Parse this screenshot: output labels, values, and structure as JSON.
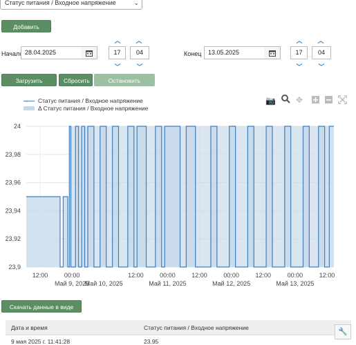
{
  "channel_select": {
    "value": "Статус питания / Входное напряжение"
  },
  "buttons": {
    "add_channel": "Добавить канал",
    "load_data": "Загрузить данные",
    "reset": "Сбросить",
    "stop_loading": "Остановить загрузку",
    "download_csv": "Скачать данные в виде CSV"
  },
  "start": {
    "label": "Начало",
    "date": "28.04.2025",
    "hour": "17",
    "minute": "04"
  },
  "end": {
    "label": "Конец",
    "date": "13.05.2025",
    "hour": "17",
    "minute": "04"
  },
  "legend": {
    "line": "Статус питания / Входное напряжение",
    "area": "Δ Статус питания / Входное напряжение"
  },
  "chart_data": {
    "type": "line",
    "series": [
      {
        "name": "Статус питания / Входное напряжение",
        "style": "line",
        "color": "#3e7dbf"
      },
      {
        "name": "Δ Статус питания / Входное напряжение",
        "style": "area",
        "color": "#c4d8ea"
      }
    ],
    "y_ticks": [
      "24",
      "23,98",
      "23,96",
      "23,94",
      "23,92",
      "23,9"
    ],
    "y_values": [
      24,
      23.98,
      23.96,
      23.94,
      23.92,
      23.9
    ],
    "ylim": [
      23.9,
      24
    ],
    "x_tick_labels": [
      {
        "top": "12:00",
        "bottom": ""
      },
      {
        "top": "00:00",
        "bottom": "Май 9, 2025"
      },
      {
        "top": "",
        "bottom": "Май 10, 2025"
      },
      {
        "top": "12:00",
        "bottom": ""
      },
      {
        "top": "00:00",
        "bottom": "Май 11, 2025"
      },
      {
        "top": "12:00",
        "bottom": ""
      },
      {
        "top": "00:00",
        "bottom": "Май 12, 2025"
      },
      {
        "top": "12:00",
        "bottom": ""
      },
      {
        "top": "00:00",
        "bottom": "Май 13, 2025"
      },
      {
        "top": "12:00",
        "bottom": ""
      }
    ],
    "segments": [
      {
        "from": 0.0,
        "value": 23.95
      },
      {
        "from": 0.11,
        "value": 23.9
      },
      {
        "from": 0.12,
        "value": 23.95
      },
      {
        "from": 0.135,
        "value": 23.9
      },
      {
        "from": 0.14,
        "value": 24
      },
      {
        "from": 0.145,
        "value": 23.9
      },
      {
        "from": 0.16,
        "value": 24
      },
      {
        "from": 0.17,
        "value": 23.9
      },
      {
        "from": 0.18,
        "value": 24
      },
      {
        "from": 0.19,
        "value": 23.9
      },
      {
        "from": 0.2,
        "value": 24
      },
      {
        "from": 0.22,
        "value": 23.9
      },
      {
        "from": 0.24,
        "value": 24
      },
      {
        "from": 0.26,
        "value": 23.9
      },
      {
        "from": 0.28,
        "value": 24
      },
      {
        "from": 0.3,
        "value": 23.9
      },
      {
        "from": 0.33,
        "value": 24
      },
      {
        "from": 0.35,
        "value": 23.9
      },
      {
        "from": 0.36,
        "value": 24
      },
      {
        "from": 0.39,
        "value": 23.9
      },
      {
        "from": 0.42,
        "value": 24
      },
      {
        "from": 0.44,
        "value": 23.9
      },
      {
        "from": 0.45,
        "value": 24
      },
      {
        "from": 0.5,
        "value": 23.9
      },
      {
        "from": 0.52,
        "value": 24
      },
      {
        "from": 0.55,
        "value": 23.9
      },
      {
        "from": 0.6,
        "value": 24
      },
      {
        "from": 0.62,
        "value": 23.9
      },
      {
        "from": 0.66,
        "value": 24
      },
      {
        "from": 0.68,
        "value": 23.9
      },
      {
        "from": 0.72,
        "value": 24
      },
      {
        "from": 0.74,
        "value": 23.9
      },
      {
        "from": 0.78,
        "value": 24
      },
      {
        "from": 0.8,
        "value": 23.9
      },
      {
        "from": 0.84,
        "value": 24
      },
      {
        "from": 0.86,
        "value": 23.9
      },
      {
        "from": 0.9,
        "value": 24
      },
      {
        "from": 0.92,
        "value": 23.9
      },
      {
        "from": 0.95,
        "value": 24
      },
      {
        "from": 0.97,
        "value": 23.9
      },
      {
        "from": 0.985,
        "value": 24
      },
      {
        "from": 1.0,
        "value": 24
      }
    ]
  },
  "table": {
    "headers": [
      "Дата и время",
      "Статус питания / Входное напряжение"
    ],
    "rows": [
      [
        "9 мая 2025 г. 11:41:28",
        "23.95"
      ]
    ]
  }
}
